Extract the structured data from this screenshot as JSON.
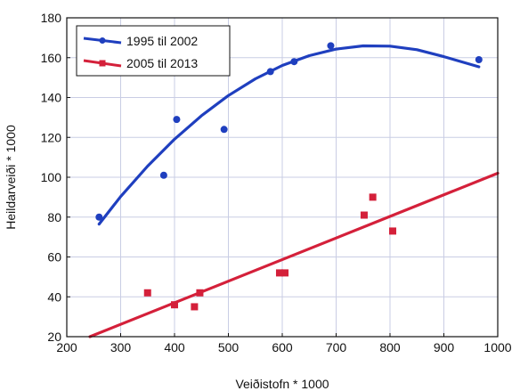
{
  "chart_data": {
    "type": "scatter",
    "title": "",
    "xlabel": "Veiðistofn * 1000",
    "ylabel": "Heildarveiði * 1000",
    "xlim": [
      200,
      1000
    ],
    "ylim": [
      20,
      180
    ],
    "xticks": [
      "200",
      "300",
      "400",
      "500",
      "600",
      "700",
      "800",
      "900",
      "1000"
    ],
    "yticks": [
      "20",
      "40",
      "60",
      "80",
      "100",
      "120",
      "140",
      "160",
      "180"
    ],
    "grid": true,
    "legend_position": "top-left",
    "series": [
      {
        "name": "1995 til 2002",
        "color": "#1f3fbf",
        "marker": "circle",
        "points": [
          {
            "x": 260,
            "y": 80
          },
          {
            "x": 380,
            "y": 101
          },
          {
            "x": 404,
            "y": 129
          },
          {
            "x": 492,
            "y": 124
          },
          {
            "x": 578,
            "y": 153
          },
          {
            "x": 622,
            "y": 158
          },
          {
            "x": 690,
            "y": 166
          },
          {
            "x": 965,
            "y": 159
          }
        ],
        "fit": {
          "kind": "quadratic",
          "line": [
            {
              "x": 260,
              "y": 76.5
            },
            {
              "x": 300,
              "y": 90.3
            },
            {
              "x": 350,
              "y": 105.6
            },
            {
              "x": 400,
              "y": 119.1
            },
            {
              "x": 450,
              "y": 130.9
            },
            {
              "x": 500,
              "y": 141.0
            },
            {
              "x": 550,
              "y": 149.4
            },
            {
              "x": 600,
              "y": 156.1
            },
            {
              "x": 650,
              "y": 161.0
            },
            {
              "x": 700,
              "y": 164.3
            },
            {
              "x": 750,
              "y": 165.9
            },
            {
              "x": 800,
              "y": 165.8
            },
            {
              "x": 850,
              "y": 164.0
            },
            {
              "x": 900,
              "y": 160.5
            },
            {
              "x": 965,
              "y": 155.4
            }
          ]
        }
      },
      {
        "name": "2005 til 2013",
        "color": "#d4203a",
        "marker": "square",
        "points": [
          {
            "x": 350,
            "y": 42
          },
          {
            "x": 400,
            "y": 36
          },
          {
            "x": 437,
            "y": 35
          },
          {
            "x": 447,
            "y": 42
          },
          {
            "x": 595,
            "y": 52
          },
          {
            "x": 605,
            "y": 52
          },
          {
            "x": 752,
            "y": 81
          },
          {
            "x": 768,
            "y": 90
          },
          {
            "x": 805,
            "y": 73
          }
        ],
        "fit": {
          "kind": "linear",
          "line": [
            {
              "x": 243,
              "y": 20
            },
            {
              "x": 1000,
              "y": 102
            }
          ]
        }
      }
    ]
  }
}
